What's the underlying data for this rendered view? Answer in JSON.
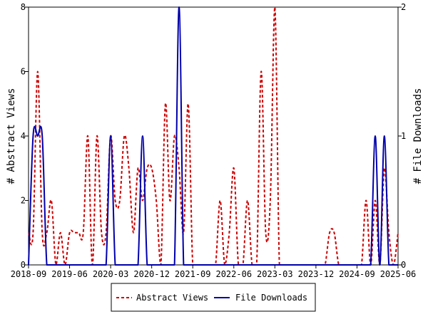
{
  "chart_data": {
    "type": "line",
    "title": "",
    "xlabel": "",
    "ylabel_left": "# Abstract Views",
    "ylabel_right": "# File Downloads",
    "x_tick_labels": [
      "2018-09",
      "2019-06",
      "2020-03",
      "2020-12",
      "2021-09",
      "2022-06",
      "2023-03",
      "2023-12",
      "2024-09",
      "2025-06"
    ],
    "x_range_months": [
      "2018-09",
      "2025-06"
    ],
    "y_left_ticks": [
      "0",
      "2",
      "4",
      "6",
      "8"
    ],
    "y_left_range": [
      0,
      8
    ],
    "y_right_ticks": [
      "0",
      "1",
      "2"
    ],
    "y_right_range": [
      0,
      2
    ],
    "grid": false,
    "legend_position": "bottom",
    "series": [
      {
        "name": "Abstract Views",
        "axis": "left",
        "color": "#cc0000",
        "style": "dashed",
        "months": [
          "2018-09",
          "2018-10",
          "2018-11",
          "2018-12",
          "2019-01",
          "2019-02",
          "2019-03",
          "2019-04",
          "2019-05",
          "2019-06",
          "2019-07",
          "2019-08",
          "2019-09",
          "2019-10",
          "2019-11",
          "2019-12",
          "2020-01",
          "2020-02",
          "2020-03",
          "2020-04",
          "2020-05",
          "2020-06",
          "2020-07",
          "2020-08",
          "2020-09",
          "2020-10",
          "2020-11",
          "2020-12",
          "2021-01",
          "2021-02",
          "2021-03",
          "2021-04",
          "2021-05",
          "2021-06",
          "2021-07",
          "2021-08",
          "2021-09",
          "2021-10",
          "2021-11",
          "2021-12",
          "2022-01",
          "2022-02",
          "2022-03",
          "2022-04",
          "2022-05",
          "2022-06",
          "2022-07",
          "2022-08",
          "2022-09",
          "2022-10",
          "2022-11",
          "2022-12",
          "2023-01",
          "2023-02",
          "2023-03",
          "2023-04",
          "2023-05",
          "2023-06",
          "2023-07",
          "2023-08",
          "2023-09",
          "2023-10",
          "2023-11",
          "2023-12",
          "2024-01",
          "2024-02",
          "2024-03",
          "2024-04",
          "2024-05",
          "2024-06",
          "2024-07",
          "2024-08",
          "2024-09",
          "2024-10",
          "2024-11",
          "2024-12",
          "2025-01",
          "2025-02",
          "2025-03",
          "2025-04",
          "2025-05",
          "2025-06"
        ],
        "values": [
          1,
          1,
          6,
          1,
          1,
          2,
          0,
          1,
          0,
          1,
          1,
          1,
          1,
          4,
          0,
          4,
          1,
          1,
          4,
          2,
          2,
          4,
          3,
          1,
          3,
          2,
          3,
          3,
          2,
          0,
          5,
          2,
          4,
          3,
          1,
          5,
          0,
          0,
          0,
          0,
          0,
          0,
          2,
          0,
          1,
          3,
          0,
          0,
          2,
          0,
          0,
          6,
          1,
          2,
          8,
          0,
          0,
          0,
          0,
          0,
          0,
          0,
          0,
          0,
          0,
          0,
          1,
          1,
          0,
          0,
          0,
          0,
          0,
          0,
          2,
          0,
          2,
          0,
          3,
          1,
          0,
          1
        ]
      },
      {
        "name": "File Downloads",
        "axis": "right",
        "color": "#0000aa",
        "style": "solid",
        "months": [
          "2018-09",
          "2018-10",
          "2018-11",
          "2018-12",
          "2019-01",
          "2019-02",
          "2019-03",
          "2019-04",
          "2019-05",
          "2019-06",
          "2019-07",
          "2019-08",
          "2019-09",
          "2019-10",
          "2019-11",
          "2019-12",
          "2020-01",
          "2020-02",
          "2020-03",
          "2020-04",
          "2020-05",
          "2020-06",
          "2020-07",
          "2020-08",
          "2020-09",
          "2020-10",
          "2020-11",
          "2020-12",
          "2021-01",
          "2021-02",
          "2021-03",
          "2021-04",
          "2021-05",
          "2021-06",
          "2021-07",
          "2021-08",
          "2021-09",
          "2021-10",
          "2021-11",
          "2021-12",
          "2022-01",
          "2022-02",
          "2022-03",
          "2022-04",
          "2022-05",
          "2022-06",
          "2022-07",
          "2022-08",
          "2022-09",
          "2022-10",
          "2022-11",
          "2022-12",
          "2023-01",
          "2023-02",
          "2023-03",
          "2023-04",
          "2023-05",
          "2023-06",
          "2023-07",
          "2023-08",
          "2023-09",
          "2023-10",
          "2023-11",
          "2023-12",
          "2024-01",
          "2024-02",
          "2024-03",
          "2024-04",
          "2024-05",
          "2024-06",
          "2024-07",
          "2024-08",
          "2024-09",
          "2024-10",
          "2024-11",
          "2024-12",
          "2025-01",
          "2025-02",
          "2025-03",
          "2025-04",
          "2025-05",
          "2025-06"
        ],
        "values": [
          0,
          1,
          1,
          1,
          0,
          0,
          0,
          0,
          0,
          0,
          0,
          0,
          0,
          0,
          0,
          0,
          0,
          0,
          1,
          0,
          0,
          0,
          0,
          0,
          0,
          1,
          0,
          0,
          0,
          0,
          0,
          0,
          0,
          2,
          0,
          0,
          0,
          0,
          0,
          0,
          0,
          0,
          0,
          0,
          0,
          0,
          0,
          0,
          0,
          0,
          0,
          0,
          0,
          0,
          0,
          0,
          0,
          0,
          0,
          0,
          0,
          0,
          0,
          0,
          0,
          0,
          0,
          0,
          0,
          0,
          0,
          0,
          0,
          0,
          0,
          0,
          1,
          0,
          1,
          0,
          0,
          0
        ]
      }
    ]
  }
}
